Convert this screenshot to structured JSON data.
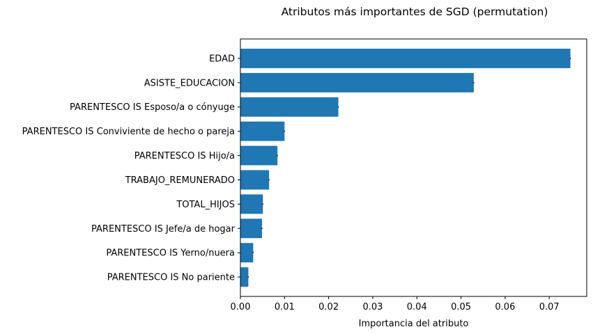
{
  "chart_data": {
    "type": "bar",
    "orientation": "horizontal",
    "title": "Atributos más importantes de SGD (permutation)",
    "xlabel": "Importancia del atributo",
    "ylabel": "",
    "categories": [
      "EDAD",
      "ASISTE_EDUCACION",
      "PARENTESCO IS Esposo/a o cónyuge",
      "PARENTESCO IS Conviviente de hecho o pareja",
      "PARENTESCO IS Hijo/a",
      "TRABAJO_REMUNERADO",
      "TOTAL_HIJOS",
      "PARENTESCO IS Jefe/a de hogar",
      "PARENTESCO IS Yerno/nuera",
      "PARENTESCO IS No pariente"
    ],
    "values": [
      0.0748,
      0.0529,
      0.0222,
      0.01,
      0.0084,
      0.0065,
      0.0051,
      0.0049,
      0.0029,
      0.0018
    ],
    "errors": [
      0.0001,
      0.0001,
      0.0001,
      0.0001,
      0.0001,
      0.0001,
      0.0001,
      0.0001,
      0.0001,
      0.0001
    ],
    "xlim": [
      0.0,
      0.0785
    ],
    "xticks": [
      "0.00",
      "0.01",
      "0.02",
      "0.03",
      "0.04",
      "0.05",
      "0.06",
      "0.07"
    ],
    "bar_color": "#1f77b4",
    "grid": false,
    "legend": "none"
  }
}
